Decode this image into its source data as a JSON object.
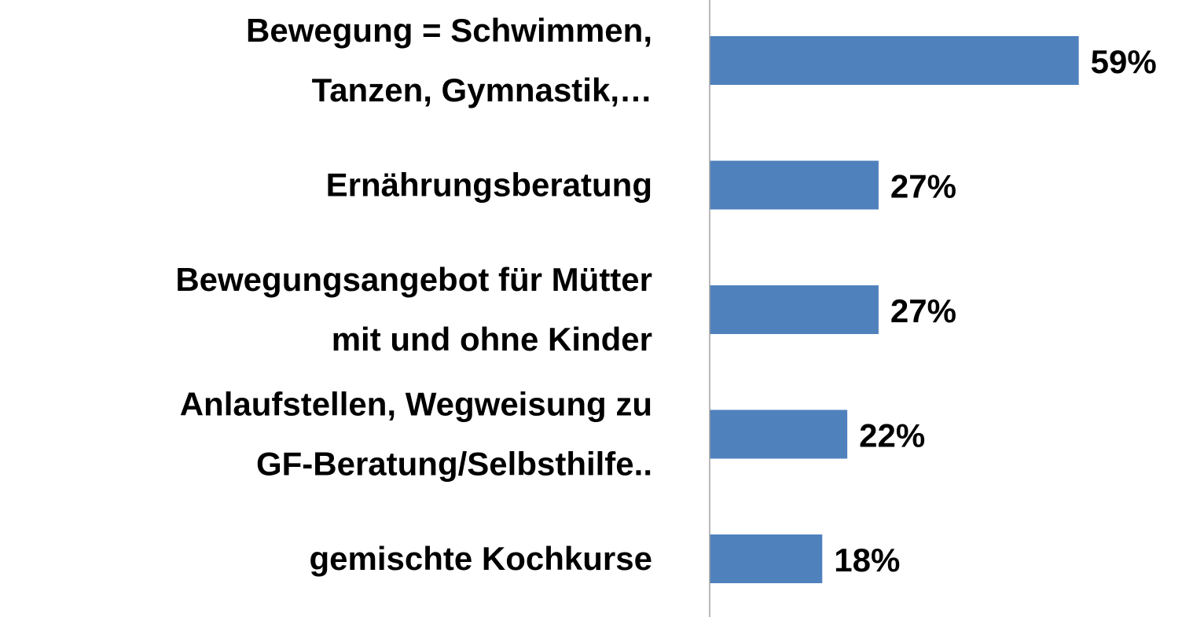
{
  "chart_data": {
    "type": "bar",
    "orientation": "horizontal",
    "categories": [
      [
        "Bewegung = Schwimmen,",
        "Tanzen, Gymnastik,…"
      ],
      [
        "Ernährungsberatung"
      ],
      [
        "Bewegungsangebot für Mütter",
        "mit und ohne Kinder"
      ],
      [
        "Anlaufstellen, Wegweisung zu",
        "GF-Beratung/Selbsthilfe.."
      ],
      [
        "gemischte Kochkurse"
      ]
    ],
    "values": [
      59,
      27,
      27,
      22,
      18
    ],
    "value_labels": [
      "59%",
      "27%",
      "27%",
      "22%",
      "18%"
    ],
    "color": "#4f81bd",
    "xlim": [
      0,
      75
    ]
  }
}
